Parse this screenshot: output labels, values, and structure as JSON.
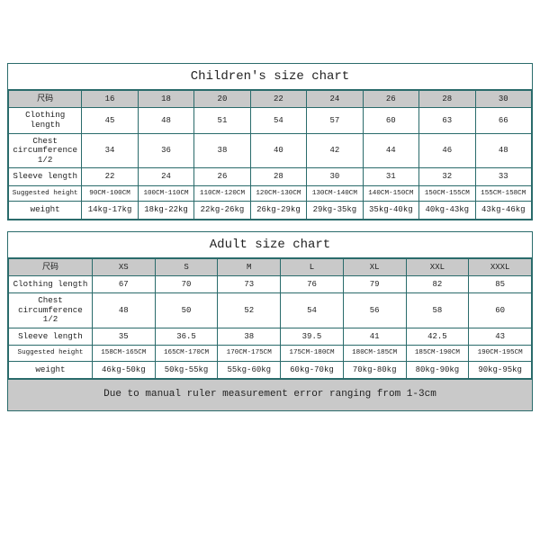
{
  "colors": {
    "border": "#2a6b6b",
    "header_bg": "#c9c9c9",
    "body_bg": "#ffffff",
    "text": "#222222"
  },
  "typography": {
    "family": "Courier-like monospace",
    "title_fontsize_pt": 11,
    "cell_fontsize_pt": 7
  },
  "children": {
    "title": "Children's size chart",
    "size_header": "尺码",
    "sizes": [
      "16",
      "18",
      "20",
      "22",
      "24",
      "26",
      "28",
      "30"
    ],
    "rows": [
      {
        "label": "Clothing length",
        "values": [
          "45",
          "48",
          "51",
          "54",
          "57",
          "60",
          "63",
          "66"
        ]
      },
      {
        "label": "Chest circumference 1/2",
        "values": [
          "34",
          "36",
          "38",
          "40",
          "42",
          "44",
          "46",
          "48"
        ]
      },
      {
        "label": "Sleeve length",
        "values": [
          "22",
          "24",
          "26",
          "28",
          "30",
          "31",
          "32",
          "33"
        ]
      },
      {
        "label": "Suggested height",
        "values": [
          "90CM-100CM",
          "100CM-110CM",
          "110CM-120CM",
          "120CM-130CM",
          "130CM-140CM",
          "140CM-150CM",
          "150CM-155CM",
          "155CM-158CM"
        ],
        "small": true
      },
      {
        "label": "weight",
        "values": [
          "14kg-17kg",
          "18kg-22kg",
          "22kg-26kg",
          "26kg-29kg",
          "29kg-35kg",
          "35kg-40kg",
          "40kg-43kg",
          "43kg-46kg"
        ]
      }
    ]
  },
  "adult": {
    "title": "Adult size chart",
    "size_header": "尺码",
    "sizes": [
      "XS",
      "S",
      "M",
      "L",
      "XL",
      "XXL",
      "XXXL"
    ],
    "rows": [
      {
        "label": "Clothing length",
        "values": [
          "67",
          "70",
          "73",
          "76",
          "79",
          "82",
          "85"
        ]
      },
      {
        "label": "Chest circumference 1/2",
        "values": [
          "48",
          "50",
          "52",
          "54",
          "56",
          "58",
          "60"
        ]
      },
      {
        "label": "Sleeve length",
        "values": [
          "35",
          "36.5",
          "38",
          "39.5",
          "41",
          "42.5",
          "43"
        ]
      },
      {
        "label": "Suggested height",
        "values": [
          "158CM-165CM",
          "165CM-170CM",
          "170CM-175CM",
          "175CM-180CM",
          "180CM-185CM",
          "185CM-190CM",
          "190CM-195CM"
        ],
        "small": true
      },
      {
        "label": "weight",
        "values": [
          "46kg-50kg",
          "50kg-55kg",
          "55kg-60kg",
          "60kg-70kg",
          "70kg-80kg",
          "80kg-90kg",
          "90kg-95kg"
        ]
      }
    ],
    "footer": "Due to manual ruler measurement error ranging from 1-3cm"
  }
}
